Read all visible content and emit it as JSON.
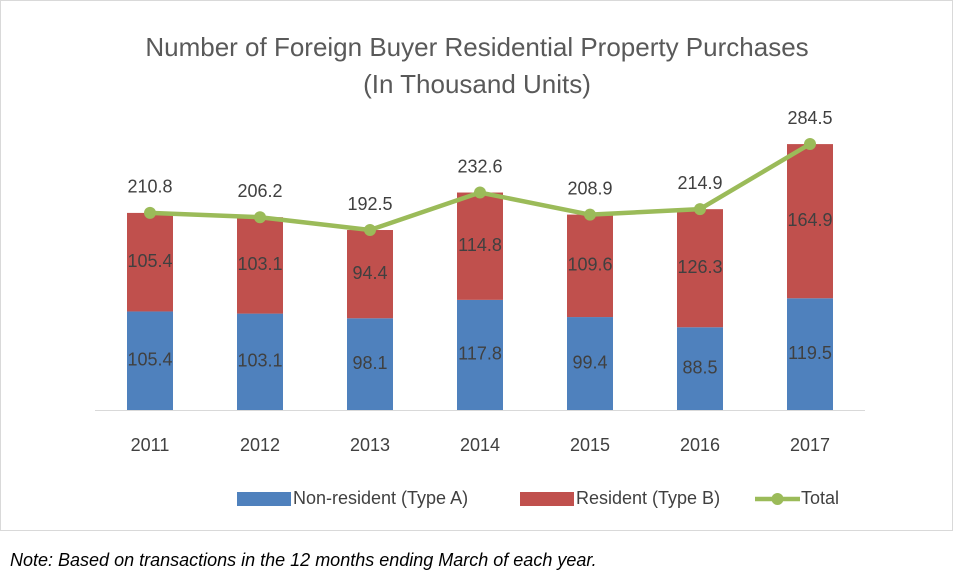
{
  "chart_data": {
    "type": "bar",
    "stacked": true,
    "title": "Number of Foreign Buyer Residential Property Purchases",
    "subtitle": "(In Thousand Units)",
    "categories": [
      "2011",
      "2012",
      "2013",
      "2014",
      "2015",
      "2016",
      "2017"
    ],
    "series": [
      {
        "name": "Non-resident (Type A)",
        "color": "#4f81bd",
        "type": "bar",
        "values": [
          105.4,
          103.1,
          98.1,
          117.8,
          99.4,
          88.5,
          119.5
        ]
      },
      {
        "name": "Resident (Type B)",
        "color": "#c0504d",
        "type": "bar",
        "values": [
          105.4,
          103.1,
          94.4,
          114.8,
          109.6,
          126.3,
          164.9
        ]
      },
      {
        "name": "Total",
        "color": "#9bbb59",
        "type": "line",
        "values": [
          210.8,
          206.2,
          192.5,
          232.6,
          208.9,
          214.9,
          284.5
        ]
      }
    ],
    "legend": "bottom",
    "note": "Note: Based on transactions in the 12 months ending March of each year."
  }
}
